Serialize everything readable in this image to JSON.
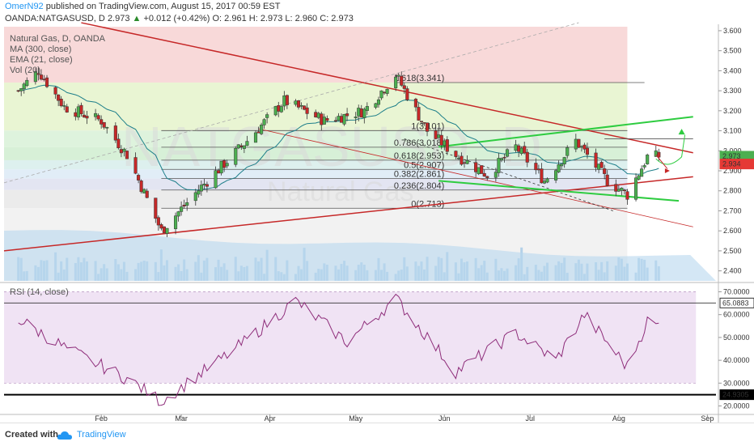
{
  "header": {
    "author": "OmerN92",
    "published_text": "published on TradingView.com, August 15, 2017 00:59 EST",
    "symbol": "OANDA:NATGASUSD, D",
    "last": "2.973",
    "change": "+0.012 (+0.42%)",
    "open": "O: 2.961",
    "high": "H: 2.973",
    "low": "L: 2.960",
    "close": "C: 2.973"
  },
  "legend": {
    "title": "Natural Gas, D, OANDA",
    "ma": "MA (300, close)",
    "ema": "EMA (21, close)",
    "vol": "Vol (20)"
  },
  "watermark": {
    "symbol": "NATGASUSD, D",
    "name": "Natural Gas"
  },
  "footer": {
    "created_with": "Created with",
    "brand": "TradingView"
  },
  "colors": {
    "candle_up": "#4caf50",
    "candle_down": "#c62828",
    "ema": "#1e7f8a",
    "trend_red": "#c62828",
    "channel_green": "#2ecc40",
    "rsi": "#8e2d7a",
    "price_tag": "#e53935",
    "last_tag": "#4caf50"
  },
  "chart_data": [
    {
      "type": "candlestick",
      "title": "Natural Gas, D, OANDA",
      "x_ticks": [
        "Feb",
        "Mar",
        "Apr",
        "May",
        "Jun",
        "Jul",
        "Aug",
        "Sep"
      ],
      "y_ticks": [
        "3.600",
        "3.500",
        "3.400",
        "3.300",
        "3.200",
        "3.100",
        "3.000",
        "2.900",
        "2.800",
        "2.700",
        "2.600",
        "2.500",
        "2.400"
      ],
      "ylim": [
        2.35,
        3.62
      ],
      "last_price_label": "2.973",
      "marked_price_label": "2.934",
      "fib_levels": [
        {
          "label": "1.618(3.341)",
          "value": 3.341
        },
        {
          "label": "1(3.101)",
          "value": 3.101
        },
        {
          "label": "0.786(3.018)",
          "value": 3.018
        },
        {
          "label": "0.618(2.953)",
          "value": 2.953
        },
        {
          "label": "0.5(2.907)",
          "value": 2.907
        },
        {
          "label": "0.382(2.861)",
          "value": 2.861
        },
        {
          "label": "0.236(2.804)",
          "value": 2.804
        },
        {
          "label": "0(2.713)",
          "value": 2.713
        }
      ],
      "anchor_closes": [
        {
          "date": "2017-01-03",
          "close": 3.3
        },
        {
          "date": "2017-01-10",
          "close": 3.4
        },
        {
          "date": "2017-01-19",
          "close": 3.22
        },
        {
          "date": "2017-02-01",
          "close": 3.15
        },
        {
          "date": "2017-02-10",
          "close": 2.98
        },
        {
          "date": "2017-02-22",
          "close": 2.6
        },
        {
          "date": "2017-03-08",
          "close": 2.82
        },
        {
          "date": "2017-03-24",
          "close": 3.05
        },
        {
          "date": "2017-04-06",
          "close": 3.25
        },
        {
          "date": "2017-04-20",
          "close": 3.15
        },
        {
          "date": "2017-05-04",
          "close": 3.2
        },
        {
          "date": "2017-05-15",
          "close": 3.38
        },
        {
          "date": "2017-05-26",
          "close": 3.1
        },
        {
          "date": "2017-06-05",
          "close": 2.98
        },
        {
          "date": "2017-06-16",
          "close": 2.88
        },
        {
          "date": "2017-06-26",
          "close": 3.02
        },
        {
          "date": "2017-07-06",
          "close": 2.85
        },
        {
          "date": "2017-07-17",
          "close": 3.05
        },
        {
          "date": "2017-07-28",
          "close": 2.85
        },
        {
          "date": "2017-08-04",
          "close": 2.78
        },
        {
          "date": "2017-08-11",
          "close": 2.97
        },
        {
          "date": "2017-08-15",
          "close": 2.973
        }
      ]
    },
    {
      "type": "line",
      "title": "RSI (14, close)",
      "y_ticks": [
        "70.0000",
        "60.0000",
        "50.0000",
        "40.0000",
        "30.0000",
        "20.0000"
      ],
      "ylim": [
        17,
        73
      ],
      "upper_level_label": "65.0883",
      "lower_level_label": "24.9305",
      "anchor_values": [
        {
          "date": "2017-01-03",
          "value": 58
        },
        {
          "date": "2017-01-20",
          "value": 45
        },
        {
          "date": "2017-02-10",
          "value": 32
        },
        {
          "date": "2017-02-22",
          "value": 22
        },
        {
          "date": "2017-03-20",
          "value": 45
        },
        {
          "date": "2017-04-10",
          "value": 66
        },
        {
          "date": "2017-04-28",
          "value": 48
        },
        {
          "date": "2017-05-15",
          "value": 67
        },
        {
          "date": "2017-06-05",
          "value": 35
        },
        {
          "date": "2017-06-26",
          "value": 52
        },
        {
          "date": "2017-07-10",
          "value": 40
        },
        {
          "date": "2017-07-20",
          "value": 60
        },
        {
          "date": "2017-08-04",
          "value": 37
        },
        {
          "date": "2017-08-11",
          "value": 57
        },
        {
          "date": "2017-08-15",
          "value": 55
        }
      ]
    }
  ]
}
